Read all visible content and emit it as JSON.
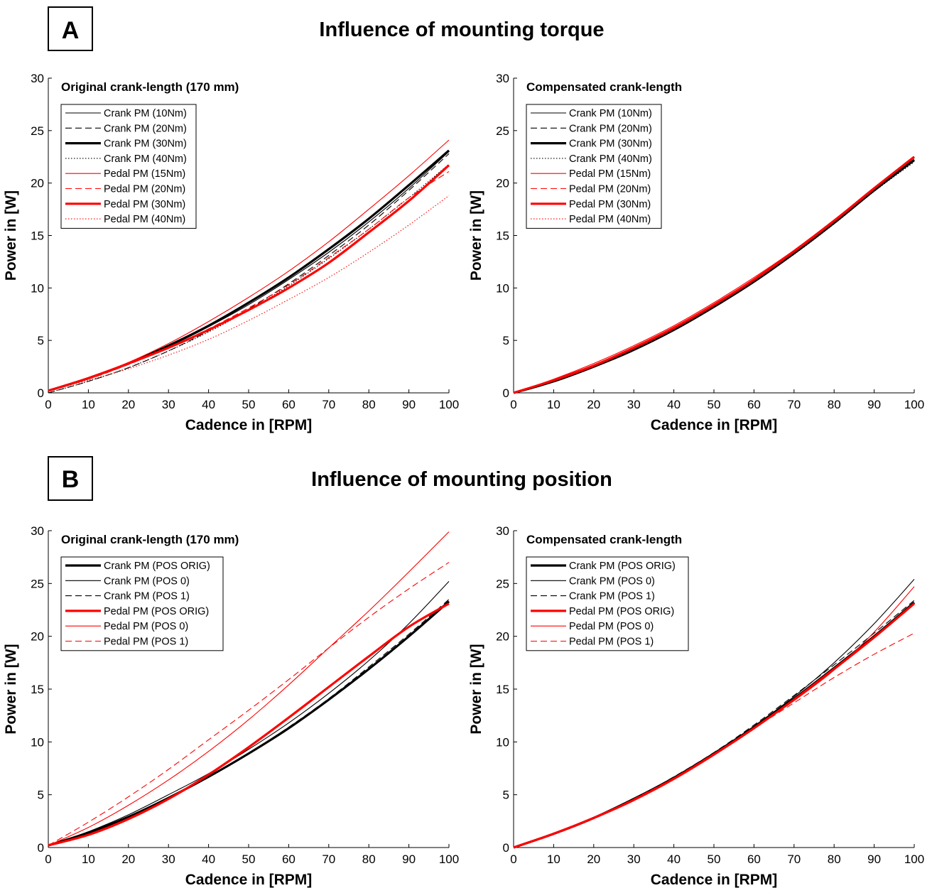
{
  "panels": {
    "A": {
      "letter": "A",
      "title": "Influence of mounting torque"
    },
    "B": {
      "letter": "B",
      "title": "Influence of mounting position"
    }
  },
  "colors": {
    "black": "#000000",
    "red": "#ff0000"
  },
  "chart_data": [
    {
      "type": "line",
      "panel": "A",
      "title": "Original crank-length (170 mm)",
      "xlabel": "Cadence in [RPM]",
      "ylabel": "Power in [W]",
      "xlim": [
        0,
        100
      ],
      "ylim": [
        0,
        30
      ],
      "xticks": [
        0,
        10,
        20,
        30,
        40,
        50,
        60,
        70,
        80,
        90,
        100
      ],
      "yticks": [
        0,
        5,
        10,
        15,
        20,
        25,
        30
      ],
      "legend_position": "top-left",
      "grid": false,
      "x": [
        0,
        10,
        20,
        30,
        40,
        50,
        60,
        70,
        80,
        90,
        100
      ],
      "series": [
        {
          "name": "Crank PM (10Nm)",
          "color": "#000000",
          "style": "solid",
          "weight": "thin",
          "values": [
            0.2,
            1.4,
            2.8,
            4.4,
            6.3,
            8.4,
            10.8,
            13.4,
            16.3,
            19.5,
            23.0
          ]
        },
        {
          "name": "Crank PM (20Nm)",
          "color": "#000000",
          "style": "dashed",
          "weight": "thin",
          "values": [
            0.0,
            1.1,
            2.4,
            4.0,
            5.9,
            8.0,
            10.4,
            13.1,
            16.0,
            19.3,
            22.8
          ]
        },
        {
          "name": "Crank PM (30Nm)",
          "color": "#000000",
          "style": "solid",
          "weight": "thick",
          "values": [
            0.2,
            1.4,
            2.8,
            4.5,
            6.4,
            8.6,
            11.0,
            13.7,
            16.6,
            19.8,
            23.1
          ]
        },
        {
          "name": "Crank PM (40Nm)",
          "color": "#000000",
          "style": "dotted",
          "weight": "thin",
          "values": [
            0.0,
            1.1,
            2.4,
            4.0,
            5.8,
            7.9,
            10.2,
            12.8,
            15.6,
            18.6,
            21.8
          ]
        },
        {
          "name": "Pedal PM (15Nm)",
          "color": "#ff0000",
          "style": "solid",
          "weight": "thin",
          "values": [
            0.2,
            1.4,
            2.9,
            4.7,
            6.8,
            9.1,
            11.6,
            14.4,
            17.5,
            20.7,
            24.1
          ]
        },
        {
          "name": "Pedal PM (20Nm)",
          "color": "#ff0000",
          "style": "dashed",
          "weight": "thin",
          "values": [
            0.2,
            1.3,
            2.7,
            4.3,
            6.1,
            8.1,
            10.3,
            12.9,
            15.6,
            18.6,
            21.1
          ]
        },
        {
          "name": "Pedal PM (30Nm)",
          "color": "#ff0000",
          "style": "solid",
          "weight": "thick",
          "values": [
            0.2,
            1.4,
            2.8,
            4.3,
            6.0,
            7.9,
            10.0,
            12.4,
            15.3,
            18.3,
            21.7
          ]
        },
        {
          "name": "Pedal PM (40Nm)",
          "color": "#ff0000",
          "style": "dotted",
          "weight": "thin",
          "values": [
            0.2,
            1.2,
            2.3,
            3.6,
            5.1,
            6.9,
            8.9,
            11.0,
            13.4,
            16.0,
            18.8
          ]
        }
      ]
    },
    {
      "type": "line",
      "panel": "A",
      "title": "Compensated crank-length",
      "xlabel": "Cadence in [RPM]",
      "ylabel": "Power in [W]",
      "xlim": [
        0,
        100
      ],
      "ylim": [
        0,
        30
      ],
      "xticks": [
        0,
        10,
        20,
        30,
        40,
        50,
        60,
        70,
        80,
        90,
        100
      ],
      "yticks": [
        0,
        5,
        10,
        15,
        20,
        25,
        30
      ],
      "legend_position": "top-left",
      "grid": false,
      "x": [
        0,
        10,
        20,
        30,
        40,
        50,
        60,
        70,
        80,
        90,
        100
      ],
      "series": [
        {
          "name": "Crank PM (10Nm)",
          "color": "#000000",
          "style": "solid",
          "weight": "thin",
          "values": [
            0.0,
            1.1,
            2.5,
            4.1,
            6.0,
            8.2,
            10.6,
            13.3,
            16.2,
            19.3,
            22.1
          ]
        },
        {
          "name": "Crank PM (20Nm)",
          "color": "#000000",
          "style": "dashed",
          "weight": "thin",
          "values": [
            0.0,
            1.1,
            2.5,
            4.1,
            6.1,
            8.3,
            10.7,
            13.4,
            16.3,
            19.4,
            22.3
          ]
        },
        {
          "name": "Crank PM (30Nm)",
          "color": "#000000",
          "style": "solid",
          "weight": "thick",
          "values": [
            0.0,
            1.1,
            2.5,
            4.1,
            6.0,
            8.2,
            10.6,
            13.3,
            16.2,
            19.3,
            22.2
          ]
        },
        {
          "name": "Crank PM (40Nm)",
          "color": "#000000",
          "style": "dotted",
          "weight": "thin",
          "values": [
            0.0,
            1.1,
            2.5,
            4.1,
            6.0,
            8.2,
            10.6,
            13.2,
            16.1,
            19.2,
            22.0
          ]
        },
        {
          "name": "Pedal PM (15Nm)",
          "color": "#ff0000",
          "style": "solid",
          "weight": "thin",
          "values": [
            0.0,
            1.3,
            2.8,
            4.5,
            6.4,
            8.6,
            11.0,
            13.6,
            16.5,
            19.5,
            22.5
          ]
        },
        {
          "name": "Pedal PM (20Nm)",
          "color": "#ff0000",
          "style": "dashed",
          "weight": "thin",
          "values": [
            0.0,
            1.2,
            2.6,
            4.3,
            6.2,
            8.4,
            10.8,
            13.4,
            16.3,
            19.4,
            22.5
          ]
        },
        {
          "name": "Pedal PM (30Nm)",
          "color": "#ff0000",
          "style": "solid",
          "weight": "thick",
          "values": [
            0.0,
            1.2,
            2.6,
            4.3,
            6.2,
            8.4,
            10.8,
            13.5,
            16.4,
            19.5,
            22.5
          ]
        },
        {
          "name": "Pedal PM (40Nm)",
          "color": "#ff0000",
          "style": "dotted",
          "weight": "thin",
          "values": [
            0.0,
            1.2,
            2.6,
            4.2,
            6.1,
            8.3,
            10.7,
            13.4,
            16.3,
            19.4,
            22.5
          ]
        }
      ]
    },
    {
      "type": "line",
      "panel": "B",
      "title": "Original crank-length (170 mm)",
      "xlabel": "Cadence in [RPM]",
      "ylabel": "Power in [W]",
      "xlim": [
        0,
        100
      ],
      "ylim": [
        0,
        30
      ],
      "xticks": [
        0,
        10,
        20,
        30,
        40,
        50,
        60,
        70,
        80,
        90,
        100
      ],
      "yticks": [
        0,
        5,
        10,
        15,
        20,
        25,
        30
      ],
      "legend_position": "top-left",
      "grid": false,
      "x": [
        0,
        10,
        20,
        30,
        40,
        50,
        60,
        70,
        80,
        90,
        100
      ],
      "series": [
        {
          "name": "Crank PM (POS ORIG)",
          "color": "#000000",
          "style": "solid",
          "weight": "thick",
          "values": [
            0.2,
            1.4,
            2.9,
            4.7,
            6.7,
            8.9,
            11.3,
            14.0,
            16.9,
            20.0,
            23.3
          ]
        },
        {
          "name": "Crank PM (POS 0)",
          "color": "#000000",
          "style": "solid",
          "weight": "thin",
          "values": [
            0.2,
            1.5,
            3.1,
            5.0,
            7.0,
            9.3,
            11.8,
            14.6,
            17.7,
            21.2,
            25.2
          ]
        },
        {
          "name": "Crank PM (POS 1)",
          "color": "#000000",
          "style": "dashed",
          "weight": "thin",
          "values": [
            0.2,
            1.4,
            2.9,
            4.7,
            6.7,
            8.9,
            11.4,
            14.1,
            17.1,
            20.2,
            23.5
          ]
        },
        {
          "name": "Pedal PM (POS ORIG)",
          "color": "#ff0000",
          "style": "solid",
          "weight": "thick",
          "values": [
            0.2,
            1.2,
            2.7,
            4.6,
            6.9,
            9.5,
            12.3,
            15.2,
            18.1,
            20.9,
            23.1
          ]
        },
        {
          "name": "Pedal PM (POS 0)",
          "color": "#ff0000",
          "style": "solid",
          "weight": "thin",
          "values": [
            0.2,
            1.9,
            4.0,
            6.4,
            9.1,
            12.1,
            15.4,
            18.9,
            22.4,
            26.1,
            29.9
          ]
        },
        {
          "name": "Pedal PM (POS 1)",
          "color": "#ff0000",
          "style": "dashed",
          "weight": "thin",
          "values": [
            0.2,
            2.4,
            4.8,
            7.4,
            10.2,
            13.0,
            15.9,
            18.9,
            21.8,
            24.5,
            27.0
          ]
        }
      ]
    },
    {
      "type": "line",
      "panel": "B",
      "title": "Compensated crank-length",
      "xlabel": "Cadence in [RPM]",
      "ylabel": "Power in [W]",
      "xlim": [
        0,
        100
      ],
      "ylim": [
        0,
        30
      ],
      "xticks": [
        0,
        10,
        20,
        30,
        40,
        50,
        60,
        70,
        80,
        90,
        100
      ],
      "yticks": [
        0,
        5,
        10,
        15,
        20,
        25,
        30
      ],
      "legend_position": "top-left",
      "grid": false,
      "x": [
        0,
        10,
        20,
        30,
        40,
        50,
        60,
        70,
        80,
        90,
        100
      ],
      "series": [
        {
          "name": "Crank PM (POS ORIG)",
          "color": "#000000",
          "style": "solid",
          "weight": "thick",
          "values": [
            0.0,
            1.3,
            2.8,
            4.6,
            6.6,
            8.9,
            11.4,
            14.1,
            17.0,
            20.0,
            23.2
          ]
        },
        {
          "name": "Crank PM (POS 0)",
          "color": "#000000",
          "style": "solid",
          "weight": "thin",
          "values": [
            0.0,
            1.3,
            2.8,
            4.6,
            6.6,
            8.9,
            11.5,
            14.3,
            17.5,
            21.2,
            25.4
          ]
        },
        {
          "name": "Crank PM (POS 1)",
          "color": "#000000",
          "style": "dashed",
          "weight": "thin",
          "values": [
            0.0,
            1.3,
            2.8,
            4.6,
            6.7,
            9.0,
            11.6,
            14.4,
            17.3,
            20.3,
            23.4
          ]
        },
        {
          "name": "Pedal PM (POS ORIG)",
          "color": "#ff0000",
          "style": "solid",
          "weight": "thick",
          "values": [
            0.0,
            1.3,
            2.8,
            4.5,
            6.5,
            8.8,
            11.3,
            14.0,
            16.9,
            19.9,
            23.1
          ]
        },
        {
          "name": "Pedal PM (POS 0)",
          "color": "#ff0000",
          "style": "solid",
          "weight": "thin",
          "values": [
            0.0,
            1.3,
            2.8,
            4.5,
            6.5,
            8.8,
            11.3,
            13.9,
            16.8,
            20.4,
            24.7
          ]
        },
        {
          "name": "Pedal PM (POS 1)",
          "color": "#ff0000",
          "style": "dashed",
          "weight": "thin",
          "values": [
            0.0,
            1.3,
            2.8,
            4.6,
            6.6,
            8.9,
            11.3,
            13.7,
            16.1,
            18.3,
            20.3
          ]
        }
      ]
    }
  ]
}
